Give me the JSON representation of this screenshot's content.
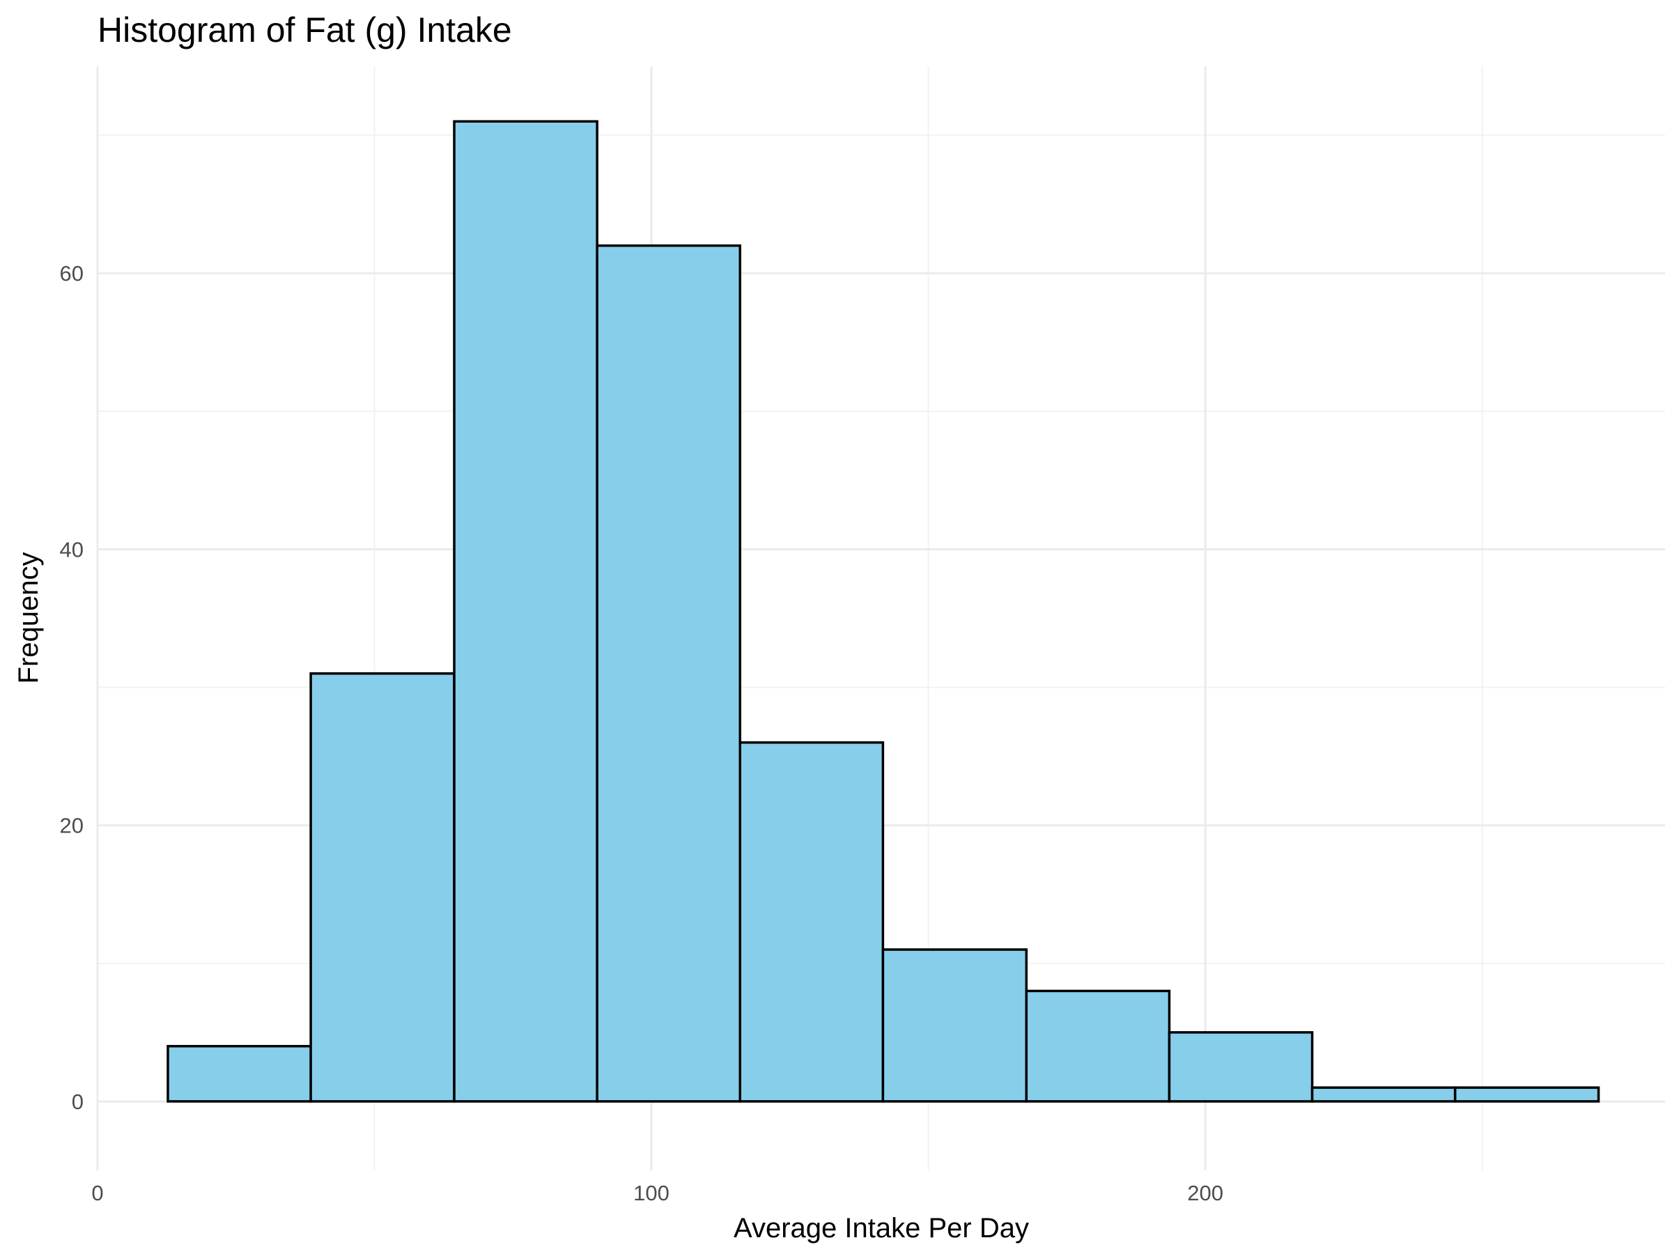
{
  "chart_data": {
    "type": "bar",
    "title": "Histogram of Fat (g) Intake",
    "xlabel": "Average Intake Per Day",
    "ylabel": "Frequency",
    "xlim": [
      0,
      283
    ],
    "ylim": [
      -5,
      75
    ],
    "x_ticks": [
      0,
      100,
      200
    ],
    "x_tick_labels": [
      "0",
      "100",
      "200"
    ],
    "x_minor_ticks": [
      50,
      150,
      250
    ],
    "y_ticks": [
      0,
      20,
      40,
      60
    ],
    "y_tick_labels": [
      "0",
      "20",
      "40",
      "60"
    ],
    "y_minor_ticks": [
      10,
      30,
      50,
      70
    ],
    "bins": [
      {
        "start": 12.7,
        "end": 38.5,
        "count": 4
      },
      {
        "start": 38.5,
        "end": 64.4,
        "count": 31
      },
      {
        "start": 64.4,
        "end": 90.2,
        "count": 71
      },
      {
        "start": 90.2,
        "end": 116.0,
        "count": 62
      },
      {
        "start": 116.0,
        "end": 141.8,
        "count": 26
      },
      {
        "start": 141.8,
        "end": 167.7,
        "count": 11
      },
      {
        "start": 167.7,
        "end": 193.5,
        "count": 8
      },
      {
        "start": 193.5,
        "end": 219.3,
        "count": 5
      },
      {
        "start": 219.3,
        "end": 245.1,
        "count": 1
      },
      {
        "start": 245.1,
        "end": 271.0,
        "count": 1
      }
    ],
    "grid": true,
    "bar_fill": "#87CEEB",
    "bar_edge": "#000000"
  }
}
